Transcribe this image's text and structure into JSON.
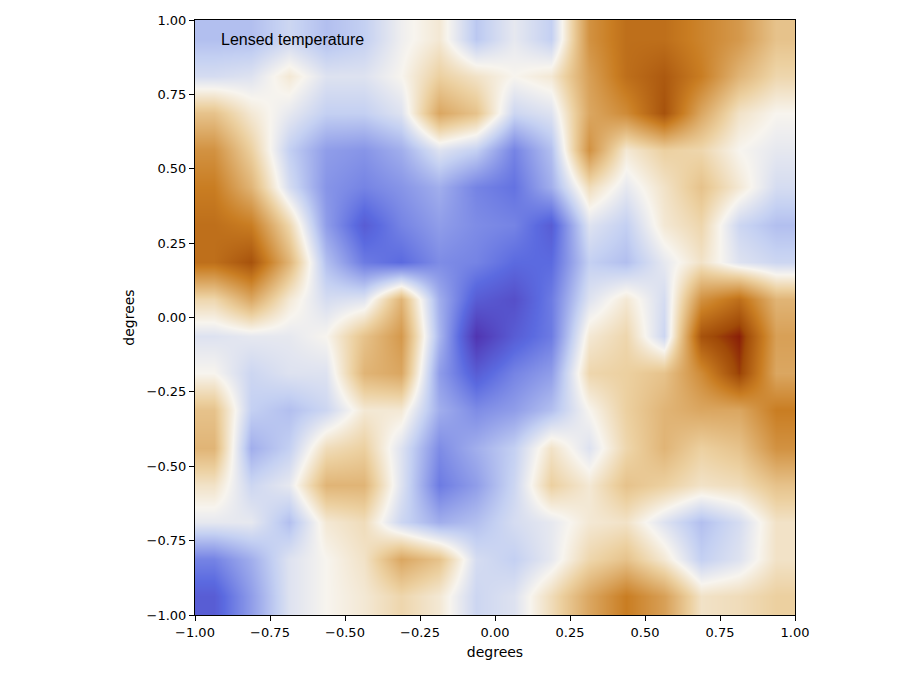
{
  "chart_data": {
    "type": "heatmap",
    "annotations": [
      "Lensed temperature"
    ],
    "x_label": "degrees",
    "y_label": "degrees",
    "xlim": [
      -1,
      1
    ],
    "ylim": [
      -1,
      1
    ],
    "xticks": [
      {
        "value": -1,
        "label": "−1.00"
      },
      {
        "value": -0.75,
        "label": "−0.75"
      },
      {
        "value": -0.5,
        "label": "−0.50"
      },
      {
        "value": -0.25,
        "label": "−0.25"
      },
      {
        "value": 0,
        "label": "0.00"
      },
      {
        "value": 0.25,
        "label": "0.25"
      },
      {
        "value": 0.5,
        "label": "0.50"
      },
      {
        "value": 0.75,
        "label": "0.75"
      },
      {
        "value": 1,
        "label": "1.00"
      }
    ],
    "yticks": [
      {
        "value": -1,
        "label": "−1.00"
      },
      {
        "value": -0.75,
        "label": "−0.75"
      },
      {
        "value": -0.5,
        "label": "−0.50"
      },
      {
        "value": -0.25,
        "label": "−0.25"
      },
      {
        "value": 0,
        "label": "0.00"
      },
      {
        "value": 0.25,
        "label": "0.25"
      },
      {
        "value": 0.5,
        "label": "0.50"
      },
      {
        "value": 0.75,
        "label": "0.75"
      },
      {
        "value": 1,
        "label": "1.00"
      }
    ],
    "grid": false,
    "x": [
      -0.9375,
      -0.8125,
      -0.6875,
      -0.5625,
      -0.4375,
      -0.3125,
      -0.1875,
      -0.0625,
      0.0625,
      0.1875,
      0.3125,
      0.4375,
      0.5625,
      0.6875,
      0.8125,
      0.9375
    ],
    "y": [
      -0.9375,
      -0.8125,
      -0.6875,
      -0.5625,
      -0.4375,
      -0.3125,
      -0.1875,
      -0.0625,
      0.0625,
      0.1875,
      0.3125,
      0.4375,
      0.5625,
      0.6875,
      0.8125,
      0.9375
    ],
    "zlim": [
      -3,
      3
    ],
    "z": [
      [
        -2.0,
        -1.2,
        -0.3,
        0.0,
        0.2,
        0.5,
        0.2,
        -0.5,
        -0.3,
        0.4,
        1.2,
        1.8,
        1.3,
        0.3,
        0.4,
        0.6
      ],
      [
        -1.5,
        -1.0,
        -0.3,
        0.0,
        0.3,
        1.2,
        0.8,
        -0.4,
        -0.6,
        -0.2,
        0.5,
        0.8,
        0.2,
        -0.6,
        -0.3,
        0.3
      ],
      [
        -0.2,
        -0.2,
        -0.8,
        0.2,
        0.4,
        -0.5,
        -1.0,
        -0.8,
        -0.4,
        -0.2,
        0.2,
        0.3,
        -0.3,
        -0.8,
        -0.4,
        0.3
      ],
      [
        0.3,
        -0.5,
        -0.2,
        1.0,
        1.0,
        -0.3,
        -1.6,
        -1.2,
        -0.5,
        0.6,
        0.2,
        0.8,
        0.6,
        0.3,
        0.4,
        0.8
      ],
      [
        1.0,
        -1.0,
        -0.6,
        0.4,
        0.6,
        -0.3,
        -1.4,
        -1.0,
        -0.6,
        0.3,
        -0.3,
        0.5,
        1.0,
        0.6,
        0.8,
        1.5
      ],
      [
        0.8,
        -0.6,
        -0.8,
        -0.5,
        0.2,
        0.2,
        -1.0,
        -1.4,
        -1.2,
        -0.8,
        0.0,
        0.6,
        1.0,
        1.2,
        1.2,
        1.8
      ],
      [
        0.0,
        -0.5,
        -0.3,
        -0.3,
        1.0,
        1.2,
        -1.2,
        -2.0,
        -1.5,
        -1.2,
        0.5,
        0.6,
        0.8,
        1.6,
        2.6,
        1.2
      ],
      [
        -0.3,
        -0.2,
        -0.2,
        0.0,
        0.8,
        1.4,
        -0.9,
        -2.6,
        -2.0,
        -1.6,
        0.2,
        0.5,
        -0.5,
        2.4,
        2.8,
        1.3
      ],
      [
        0.5,
        1.2,
        0.2,
        -0.4,
        -0.3,
        1.0,
        -1.0,
        -2.0,
        -2.2,
        -1.6,
        -0.3,
        0.2,
        -0.4,
        1.5,
        2.0,
        1.0
      ],
      [
        2.0,
        2.4,
        1.0,
        -0.8,
        -1.6,
        -1.8,
        -1.4,
        -1.5,
        -1.8,
        -1.8,
        -0.6,
        -0.8,
        -0.2,
        0.3,
        -0.3,
        -0.5
      ],
      [
        2.0,
        1.8,
        0.5,
        -1.2,
        -2.0,
        -1.5,
        -1.2,
        -1.4,
        -1.5,
        -2.0,
        -0.3,
        -0.6,
        0.2,
        0.5,
        -0.5,
        -0.8
      ],
      [
        1.8,
        1.0,
        -0.4,
        -1.3,
        -1.5,
        -1.3,
        -1.0,
        -1.5,
        -1.7,
        -1.0,
        0.4,
        -0.2,
        0.3,
        0.8,
        0.2,
        -0.4
      ],
      [
        1.5,
        0.6,
        -0.6,
        -1.2,
        -1.3,
        -1.0,
        -0.3,
        -0.6,
        -1.5,
        -0.8,
        1.5,
        0.2,
        0.6,
        0.5,
        0.0,
        -0.2
      ],
      [
        0.8,
        0.2,
        -0.2,
        -0.6,
        -0.6,
        -0.3,
        1.2,
        0.8,
        -0.5,
        -0.3,
        1.2,
        1.6,
        2.4,
        1.2,
        0.3,
        0.0
      ],
      [
        -0.4,
        -0.3,
        0.2,
        -0.3,
        -0.3,
        0.0,
        0.6,
        0.3,
        0.0,
        0.2,
        1.3,
        2.0,
        2.3,
        1.8,
        1.0,
        0.5
      ],
      [
        -0.8,
        -0.8,
        -0.5,
        -0.8,
        -0.6,
        -0.1,
        0.2,
        -0.7,
        -0.2,
        -0.6,
        1.5,
        2.0,
        2.0,
        1.7,
        1.4,
        0.8
      ]
    ]
  }
}
